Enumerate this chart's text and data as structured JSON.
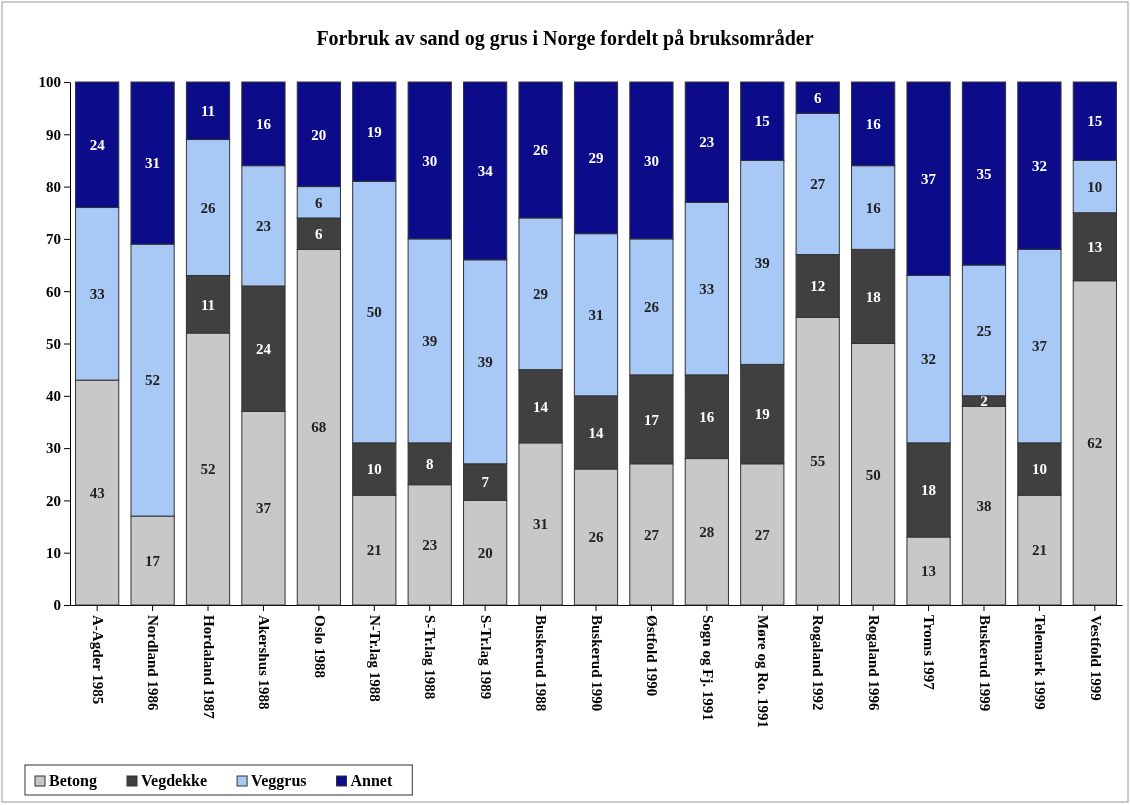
{
  "chart_data": {
    "type": "bar",
    "stacked": true,
    "title": "Forbruk av sand og grus i Norge fordelt på bruksområder",
    "categories": [
      "A-Agder 1985",
      "Nordland 1986",
      "Hordaland 1987",
      "Akershus 1988",
      "Oslo 1988",
      "N-Tr.lag 1988",
      "S-Tr.lag 1988",
      "S-Tr.lag 1989",
      "Buskerud 1988",
      "Buskerud 1990",
      "Østfold 1990",
      "Sogn og Fj. 1991",
      "Møre og Ro. 1991",
      "Rogaland 1992",
      "Rogaland 1996",
      "Troms 1997",
      "Buskerud 1999",
      "Telemark 1999",
      "Vestfold 1999"
    ],
    "series": [
      {
        "name": "Betong",
        "color": "#c8c8c8",
        "values": [
          43,
          17,
          52,
          37,
          68,
          21,
          23,
          20,
          31,
          26,
          27,
          28,
          27,
          55,
          50,
          13,
          38,
          21,
          62
        ]
      },
      {
        "name": "Vegdekke",
        "color": "#404040",
        "values": [
          0,
          0,
          11,
          24,
          6,
          10,
          8,
          7,
          14,
          14,
          17,
          16,
          19,
          12,
          18,
          18,
          2,
          10,
          13
        ],
        "value_labels": [
          null,
          null,
          "11",
          "24",
          "6",
          "10",
          "8",
          "7",
          "14",
          "14",
          "17",
          "16",
          "19",
          "12",
          "18",
          "18",
          "2",
          "10",
          "13"
        ]
      },
      {
        "name": "Veggrus",
        "color": "#a8c8f5",
        "values": [
          33,
          52,
          26,
          23,
          6,
          50,
          39,
          39,
          29,
          31,
          26,
          33,
          39,
          27,
          16,
          32,
          25,
          37,
          10
        ]
      },
      {
        "name": "Annet",
        "color": "#0c0c8a",
        "values": [
          24,
          31,
          11,
          16,
          20,
          19,
          30,
          34,
          26,
          29,
          30,
          23,
          15,
          6,
          16,
          37,
          35,
          32,
          15
        ]
      }
    ],
    "ylim": [
      0,
      100
    ],
    "yticks": [
      0,
      10,
      20,
      30,
      40,
      50,
      60,
      70,
      80,
      90,
      100
    ],
    "data_labels": true,
    "legend": "bottom left",
    "grid": false
  }
}
